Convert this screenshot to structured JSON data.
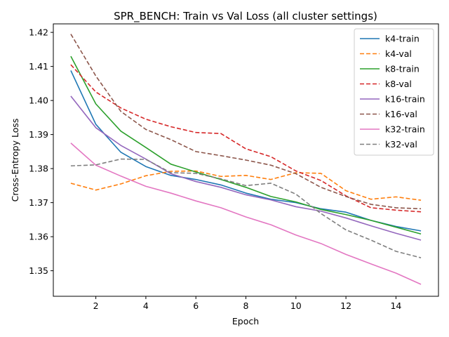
{
  "chart_data": {
    "type": "line",
    "title": "SPR_BENCH: Train vs Val Loss (all cluster settings)",
    "xlabel": "Epoch",
    "ylabel": "Cross-Entropy Loss",
    "xlim": [
      0.3,
      15.7
    ],
    "ylim": [
      1.3425,
      1.4225
    ],
    "xticks": [
      2,
      4,
      6,
      8,
      10,
      12,
      14
    ],
    "yticks": [
      1.35,
      1.36,
      1.37,
      1.38,
      1.39,
      1.4,
      1.41,
      1.42
    ],
    "grid": false,
    "legend_position": "top-right",
    "x": [
      1,
      2,
      3,
      4,
      5,
      6,
      7,
      8,
      9,
      10,
      11,
      12,
      13,
      14,
      15
    ],
    "series": [
      {
        "name": "k4-train",
        "color": "#1f77b4",
        "dash": "solid",
        "values": [
          1.4088,
          1.393,
          1.3848,
          1.3806,
          1.378,
          1.3768,
          1.3752,
          1.3728,
          1.371,
          1.37,
          1.3682,
          1.3672,
          1.3648,
          1.363,
          1.3617
        ]
      },
      {
        "name": "k4-val",
        "color": "#ff7f0e",
        "dash": "dashed",
        "values": [
          1.3757,
          1.3737,
          1.3755,
          1.3779,
          1.3792,
          1.3793,
          1.3777,
          1.378,
          1.3768,
          1.3788,
          1.3786,
          1.3735,
          1.371,
          1.3717,
          1.3707
        ]
      },
      {
        "name": "k8-train",
        "color": "#2ca02c",
        "dash": "solid",
        "values": [
          1.413,
          1.399,
          1.391,
          1.3862,
          1.3813,
          1.379,
          1.3768,
          1.3745,
          1.3718,
          1.3702,
          1.368,
          1.3665,
          1.3648,
          1.3628,
          1.3608
        ]
      },
      {
        "name": "k8-val",
        "color": "#d62728",
        "dash": "dashed",
        "values": [
          1.4105,
          1.4025,
          1.3978,
          1.3945,
          1.3923,
          1.3906,
          1.3903,
          1.3858,
          1.3835,
          1.3793,
          1.3765,
          1.372,
          1.3685,
          1.3678,
          1.3673
        ]
      },
      {
        "name": "k16-train",
        "color": "#9467bd",
        "dash": "solid",
        "values": [
          1.4013,
          1.392,
          1.3868,
          1.3828,
          1.3785,
          1.3762,
          1.3745,
          1.3723,
          1.3708,
          1.3688,
          1.3675,
          1.3655,
          1.3632,
          1.361,
          1.359
        ]
      },
      {
        "name": "k16-val",
        "color": "#8c564b",
        "dash": "dashed",
        "values": [
          1.4195,
          1.4072,
          1.3968,
          1.3915,
          1.3885,
          1.385,
          1.3838,
          1.3825,
          1.381,
          1.3785,
          1.3745,
          1.3718,
          1.3695,
          1.3685,
          1.3682
        ]
      },
      {
        "name": "k32-train",
        "color": "#e377c2",
        "dash": "solid",
        "values": [
          1.3875,
          1.381,
          1.3778,
          1.3748,
          1.3728,
          1.3705,
          1.3685,
          1.3658,
          1.3635,
          1.3605,
          1.358,
          1.3548,
          1.352,
          1.3493,
          1.346
        ]
      },
      {
        "name": "k32-val",
        "color": "#7f7f7f",
        "dash": "dashed",
        "values": [
          1.3808,
          1.3811,
          1.3828,
          1.3827,
          1.3788,
          1.3786,
          1.377,
          1.375,
          1.3757,
          1.3725,
          1.3668,
          1.362,
          1.359,
          1.3557,
          1.3538
        ]
      }
    ]
  }
}
